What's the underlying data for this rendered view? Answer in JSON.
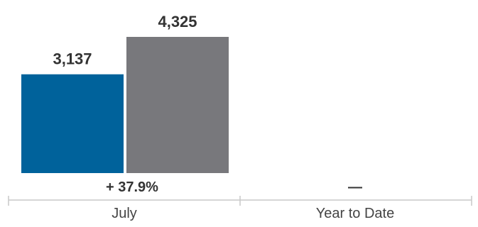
{
  "chart_data": {
    "type": "bar",
    "categories": [
      "July",
      "Year to Date"
    ],
    "series": [
      {
        "values": [
          3137,
          null
        ],
        "color": "#00629b"
      },
      {
        "values": [
          4325,
          null
        ],
        "color": "#78787c"
      }
    ],
    "value_labels": [
      [
        "3,137",
        "4,325"
      ],
      []
    ],
    "change_labels": [
      "+ 37.9%",
      "—"
    ],
    "ylim": [
      0,
      4325
    ],
    "grid": false,
    "legend": "none"
  }
}
